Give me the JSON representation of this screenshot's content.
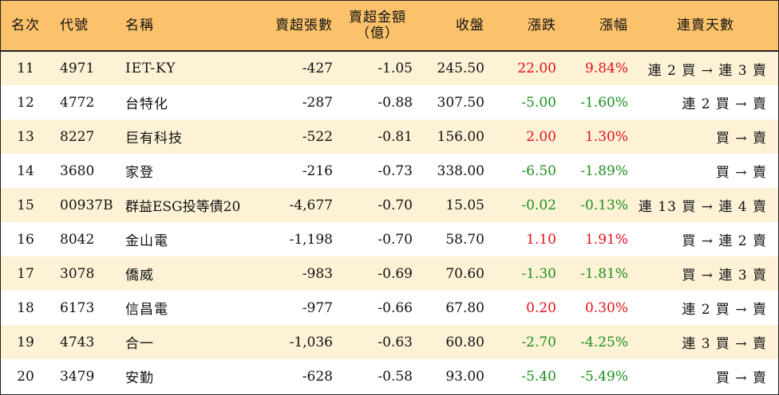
{
  "headers": {
    "rank": "名次",
    "code": "代號",
    "name": "名稱",
    "net_sell_lots": "賣超張數",
    "net_sell_amount_line1": "賣超金額",
    "net_sell_amount_line2": "（億）",
    "close": "收盤",
    "change": "漲跌",
    "change_pct": "漲幅",
    "streak": "連賣天數"
  },
  "colors": {
    "header_bg": "#fbc26b",
    "stripe_bg": "#fdf2d6",
    "up": "#e1101b",
    "down": "#1b8f1b"
  },
  "rows": [
    {
      "rank": "11",
      "code": "4971",
      "name": "IET-KY",
      "lots": "-427",
      "amount": "-1.05",
      "close": "245.50",
      "change": "22.00",
      "pct": "9.84%",
      "dir": "up",
      "streak": "連 2 買 → 連 3 賣"
    },
    {
      "rank": "12",
      "code": "4772",
      "name": "台特化",
      "lots": "-287",
      "amount": "-0.88",
      "close": "307.50",
      "change": "-5.00",
      "pct": "-1.60%",
      "dir": "down",
      "streak": "連 2 買 → 賣"
    },
    {
      "rank": "13",
      "code": "8227",
      "name": "巨有科技",
      "lots": "-522",
      "amount": "-0.81",
      "close": "156.00",
      "change": "2.00",
      "pct": "1.30%",
      "dir": "up",
      "streak": "買 → 賣"
    },
    {
      "rank": "14",
      "code": "3680",
      "name": "家登",
      "lots": "-216",
      "amount": "-0.73",
      "close": "338.00",
      "change": "-6.50",
      "pct": "-1.89%",
      "dir": "down",
      "streak": "買 → 賣"
    },
    {
      "rank": "15",
      "code": "00937B",
      "name": "群益ESG投等債20",
      "lots": "-4,677",
      "amount": "-0.70",
      "close": "15.05",
      "change": "-0.02",
      "pct": "-0.13%",
      "dir": "down",
      "streak": "連 13 買 → 連 4 賣"
    },
    {
      "rank": "16",
      "code": "8042",
      "name": "金山電",
      "lots": "-1,198",
      "amount": "-0.70",
      "close": "58.70",
      "change": "1.10",
      "pct": "1.91%",
      "dir": "up",
      "streak": "買 → 連 2 賣"
    },
    {
      "rank": "17",
      "code": "3078",
      "name": "僑威",
      "lots": "-983",
      "amount": "-0.69",
      "close": "70.60",
      "change": "-1.30",
      "pct": "-1.81%",
      "dir": "down",
      "streak": "買 → 連 3 賣"
    },
    {
      "rank": "18",
      "code": "6173",
      "name": "信昌電",
      "lots": "-977",
      "amount": "-0.66",
      "close": "67.80",
      "change": "0.20",
      "pct": "0.30%",
      "dir": "up",
      "streak": "連 2 買 → 賣"
    },
    {
      "rank": "19",
      "code": "4743",
      "name": "合一",
      "lots": "-1,036",
      "amount": "-0.63",
      "close": "60.80",
      "change": "-2.70",
      "pct": "-4.25%",
      "dir": "down",
      "streak": "連 3 買 → 賣"
    },
    {
      "rank": "20",
      "code": "3479",
      "name": "安勤",
      "lots": "-628",
      "amount": "-0.58",
      "close": "93.00",
      "change": "-5.40",
      "pct": "-5.49%",
      "dir": "down",
      "streak": "買 → 賣"
    }
  ]
}
